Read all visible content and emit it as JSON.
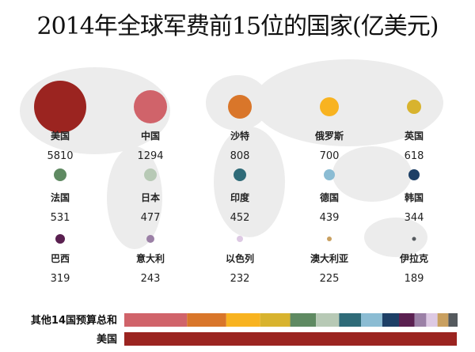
{
  "chart_data": {
    "type": "bubble",
    "title": "2014年全球军费前15位的国家(亿美元)",
    "countries": [
      {
        "name": "美国",
        "value": 5810,
        "color": "#9b2420"
      },
      {
        "name": "中国",
        "value": 1294,
        "color": "#d0636a"
      },
      {
        "name": "沙特",
        "value": 808,
        "color": "#d9762a"
      },
      {
        "name": "俄罗斯",
        "value": 700,
        "color": "#f8b320"
      },
      {
        "name": "英国",
        "value": 618,
        "color": "#d8b32e"
      },
      {
        "name": "法国",
        "value": 531,
        "color": "#5f8a62"
      },
      {
        "name": "日本",
        "value": 477,
        "color": "#b7c9b5"
      },
      {
        "name": "印度",
        "value": 452,
        "color": "#2f6b78"
      },
      {
        "name": "德国",
        "value": 439,
        "color": "#8bbcd3"
      },
      {
        "name": "韩国",
        "value": 344,
        "color": "#1d3f66"
      },
      {
        "name": "巴西",
        "value": 319,
        "color": "#5a2050"
      },
      {
        "name": "意大利",
        "value": 243,
        "color": "#9b80a6"
      },
      {
        "name": "以色列",
        "value": 232,
        "color": "#ddc9e3"
      },
      {
        "name": "澳大利亚",
        "value": 225,
        "color": "#c9a060"
      },
      {
        "name": "伊拉克",
        "value": 189,
        "color": "#555a5e"
      }
    ],
    "bars": [
      {
        "label": "其他14国预算总和",
        "type": "stacked-others"
      },
      {
        "label": "美国",
        "type": "usa"
      }
    ]
  }
}
